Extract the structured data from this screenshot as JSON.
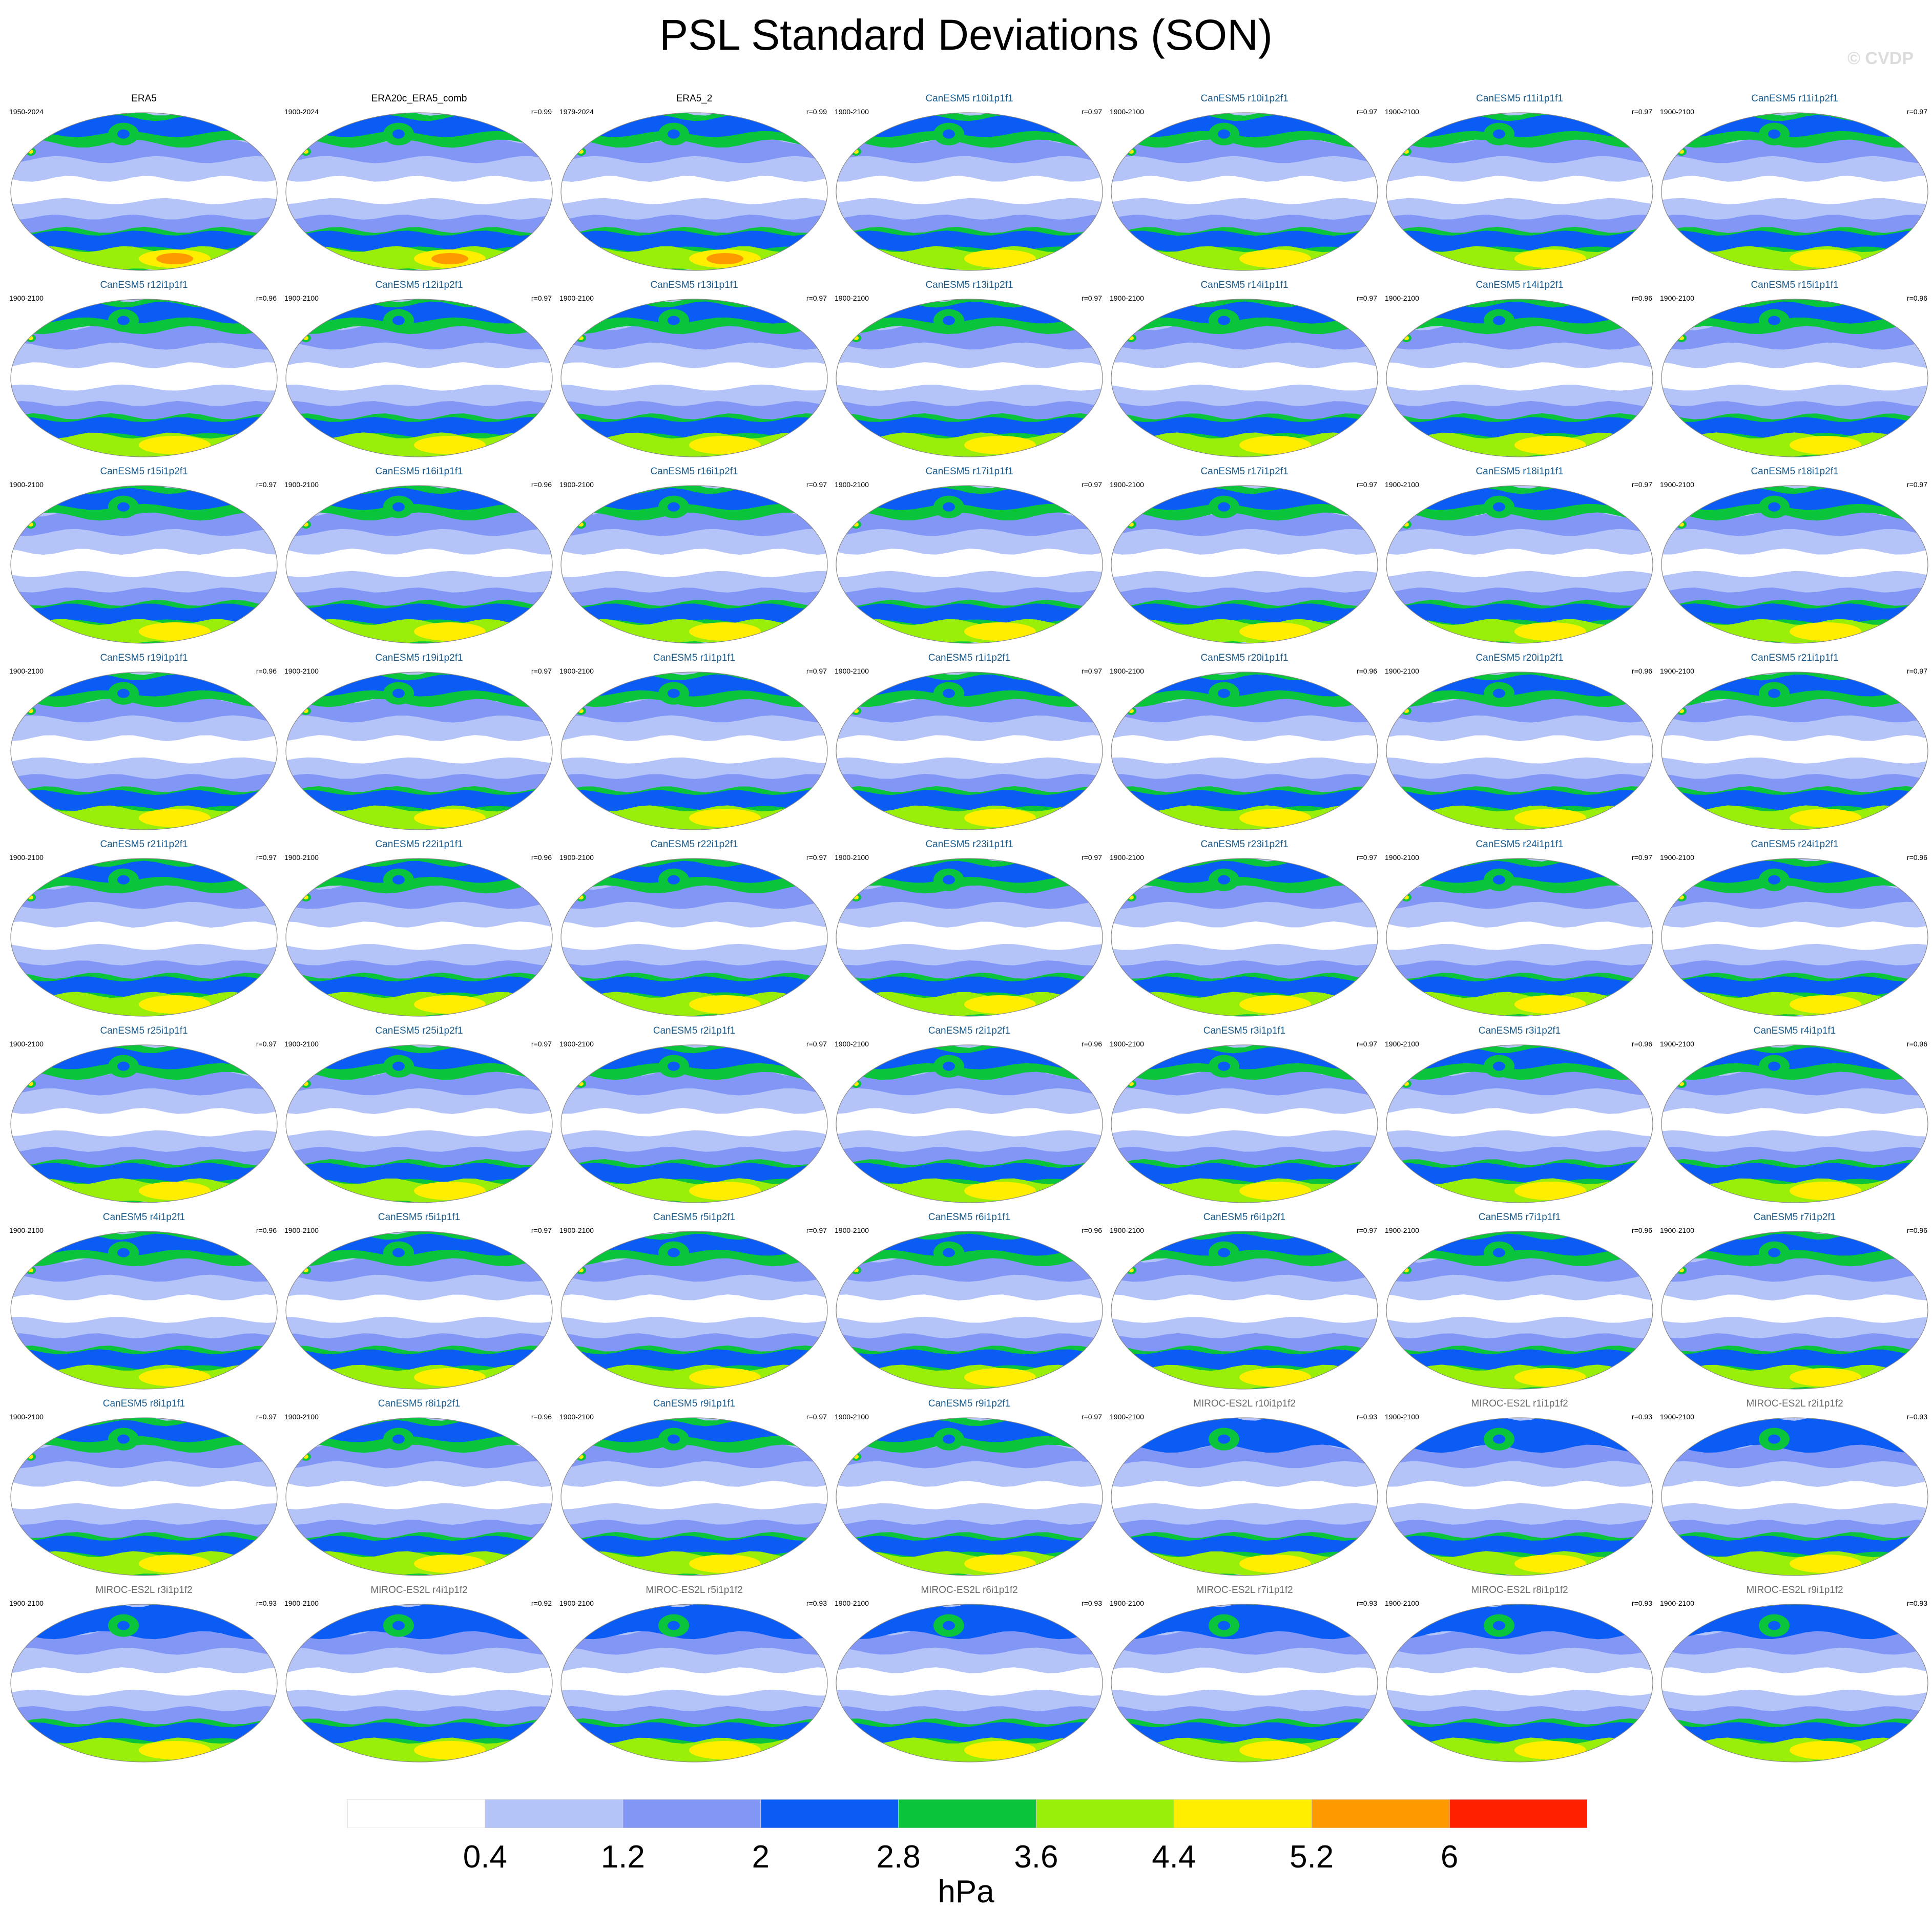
{
  "title": "PSL Standard Deviations (SON)",
  "watermark": "© CVDP",
  "colors": {
    "model_title_canesm": "#1a5b8c",
    "model_title_miroc": "#6a6a6a",
    "obs_title": "#000000"
  },
  "chart_data": {
    "type": "heatmap",
    "projection": "robinson-global-maps",
    "panel_layout": {
      "columns": 7,
      "rows": 9
    },
    "panels": [
      {
        "title": "ERA5",
        "period": "1950-2024",
        "r": "",
        "kind": "obs"
      },
      {
        "title": "ERA20c_ERA5_comb",
        "period": "1900-2024",
        "r": "r=0.99",
        "kind": "obs"
      },
      {
        "title": "ERA5_2",
        "period": "1979-2024",
        "r": "r=0.99",
        "kind": "obs"
      },
      {
        "title": "CanESM5 r10i1p1f1",
        "period": "1900-2100",
        "r": "r=0.97",
        "kind": "canesm"
      },
      {
        "title": "CanESM5 r10i1p2f1",
        "period": "1900-2100",
        "r": "r=0.97",
        "kind": "canesm"
      },
      {
        "title": "CanESM5 r11i1p1f1",
        "period": "1900-2100",
        "r": "r=0.97",
        "kind": "canesm"
      },
      {
        "title": "CanESM5 r11i1p2f1",
        "period": "1900-2100",
        "r": "r=0.97",
        "kind": "canesm"
      },
      {
        "title": "CanESM5 r12i1p1f1",
        "period": "1900-2100",
        "r": "r=0.96",
        "kind": "canesm"
      },
      {
        "title": "CanESM5 r12i1p2f1",
        "period": "1900-2100",
        "r": "r=0.97",
        "kind": "canesm"
      },
      {
        "title": "CanESM5 r13i1p1f1",
        "period": "1900-2100",
        "r": "r=0.97",
        "kind": "canesm"
      },
      {
        "title": "CanESM5 r13i1p2f1",
        "period": "1900-2100",
        "r": "r=0.97",
        "kind": "canesm"
      },
      {
        "title": "CanESM5 r14i1p1f1",
        "period": "1900-2100",
        "r": "r=0.97",
        "kind": "canesm"
      },
      {
        "title": "CanESM5 r14i1p2f1",
        "period": "1900-2100",
        "r": "r=0.96",
        "kind": "canesm"
      },
      {
        "title": "CanESM5 r15i1p1f1",
        "period": "1900-2100",
        "r": "r=0.96",
        "kind": "canesm"
      },
      {
        "title": "CanESM5 r15i1p2f1",
        "period": "1900-2100",
        "r": "r=0.97",
        "kind": "canesm"
      },
      {
        "title": "CanESM5 r16i1p1f1",
        "period": "1900-2100",
        "r": "r=0.96",
        "kind": "canesm"
      },
      {
        "title": "CanESM5 r16i1p2f1",
        "period": "1900-2100",
        "r": "r=0.97",
        "kind": "canesm"
      },
      {
        "title": "CanESM5 r17i1p1f1",
        "period": "1900-2100",
        "r": "r=0.97",
        "kind": "canesm"
      },
      {
        "title": "CanESM5 r17i1p2f1",
        "period": "1900-2100",
        "r": "r=0.97",
        "kind": "canesm"
      },
      {
        "title": "CanESM5 r18i1p1f1",
        "period": "1900-2100",
        "r": "r=0.97",
        "kind": "canesm"
      },
      {
        "title": "CanESM5 r18i1p2f1",
        "period": "1900-2100",
        "r": "r=0.97",
        "kind": "canesm"
      },
      {
        "title": "CanESM5 r19i1p1f1",
        "period": "1900-2100",
        "r": "r=0.96",
        "kind": "canesm"
      },
      {
        "title": "CanESM5 r19i1p2f1",
        "period": "1900-2100",
        "r": "r=0.97",
        "kind": "canesm"
      },
      {
        "title": "CanESM5 r1i1p1f1",
        "period": "1900-2100",
        "r": "r=0.97",
        "kind": "canesm"
      },
      {
        "title": "CanESM5 r1i1p2f1",
        "period": "1900-2100",
        "r": "r=0.97",
        "kind": "canesm"
      },
      {
        "title": "CanESM5 r20i1p1f1",
        "period": "1900-2100",
        "r": "r=0.96",
        "kind": "canesm"
      },
      {
        "title": "CanESM5 r20i1p2f1",
        "period": "1900-2100",
        "r": "r=0.96",
        "kind": "canesm"
      },
      {
        "title": "CanESM5 r21i1p1f1",
        "period": "1900-2100",
        "r": "r=0.97",
        "kind": "canesm"
      },
      {
        "title": "CanESM5 r21i1p2f1",
        "period": "1900-2100",
        "r": "r=0.97",
        "kind": "canesm"
      },
      {
        "title": "CanESM5 r22i1p1f1",
        "period": "1900-2100",
        "r": "r=0.96",
        "kind": "canesm"
      },
      {
        "title": "CanESM5 r22i1p2f1",
        "period": "1900-2100",
        "r": "r=0.97",
        "kind": "canesm"
      },
      {
        "title": "CanESM5 r23i1p1f1",
        "period": "1900-2100",
        "r": "r=0.97",
        "kind": "canesm"
      },
      {
        "title": "CanESM5 r23i1p2f1",
        "period": "1900-2100",
        "r": "r=0.97",
        "kind": "canesm"
      },
      {
        "title": "CanESM5 r24i1p1f1",
        "period": "1900-2100",
        "r": "r=0.97",
        "kind": "canesm"
      },
      {
        "title": "CanESM5 r24i1p2f1",
        "period": "1900-2100",
        "r": "r=0.96",
        "kind": "canesm"
      },
      {
        "title": "CanESM5 r25i1p1f1",
        "period": "1900-2100",
        "r": "r=0.97",
        "kind": "canesm"
      },
      {
        "title": "CanESM5 r25i1p2f1",
        "period": "1900-2100",
        "r": "r=0.97",
        "kind": "canesm"
      },
      {
        "title": "CanESM5 r2i1p1f1",
        "period": "1900-2100",
        "r": "r=0.97",
        "kind": "canesm"
      },
      {
        "title": "CanESM5 r2i1p2f1",
        "period": "1900-2100",
        "r": "r=0.96",
        "kind": "canesm"
      },
      {
        "title": "CanESM5 r3i1p1f1",
        "period": "1900-2100",
        "r": "r=0.97",
        "kind": "canesm"
      },
      {
        "title": "CanESM5 r3i1p2f1",
        "period": "1900-2100",
        "r": "r=0.96",
        "kind": "canesm"
      },
      {
        "title": "CanESM5 r4i1p1f1",
        "period": "1900-2100",
        "r": "r=0.96",
        "kind": "canesm"
      },
      {
        "title": "CanESM5 r4i1p2f1",
        "period": "1900-2100",
        "r": "r=0.96",
        "kind": "canesm"
      },
      {
        "title": "CanESM5 r5i1p1f1",
        "period": "1900-2100",
        "r": "r=0.97",
        "kind": "canesm"
      },
      {
        "title": "CanESM5 r5i1p2f1",
        "period": "1900-2100",
        "r": "r=0.97",
        "kind": "canesm"
      },
      {
        "title": "CanESM5 r6i1p1f1",
        "period": "1900-2100",
        "r": "r=0.96",
        "kind": "canesm"
      },
      {
        "title": "CanESM5 r6i1p2f1",
        "period": "1900-2100",
        "r": "r=0.97",
        "kind": "canesm"
      },
      {
        "title": "CanESM5 r7i1p1f1",
        "period": "1900-2100",
        "r": "r=0.96",
        "kind": "canesm"
      },
      {
        "title": "CanESM5 r7i1p2f1",
        "period": "1900-2100",
        "r": "r=0.96",
        "kind": "canesm"
      },
      {
        "title": "CanESM5 r8i1p1f1",
        "period": "1900-2100",
        "r": "r=0.97",
        "kind": "canesm"
      },
      {
        "title": "CanESM5 r8i1p2f1",
        "period": "1900-2100",
        "r": "r=0.96",
        "kind": "canesm"
      },
      {
        "title": "CanESM5 r9i1p1f1",
        "period": "1900-2100",
        "r": "r=0.97",
        "kind": "canesm"
      },
      {
        "title": "CanESM5 r9i1p2f1",
        "period": "1900-2100",
        "r": "r=0.97",
        "kind": "canesm"
      },
      {
        "title": "MIROC-ES2L r10i1p1f2",
        "period": "1900-2100",
        "r": "r=0.93",
        "kind": "miroc"
      },
      {
        "title": "MIROC-ES2L r1i1p1f2",
        "period": "1900-2100",
        "r": "r=0.93",
        "kind": "miroc"
      },
      {
        "title": "MIROC-ES2L r2i1p1f2",
        "period": "1900-2100",
        "r": "r=0.93",
        "kind": "miroc"
      },
      {
        "title": "MIROC-ES2L r3i1p1f2",
        "period": "1900-2100",
        "r": "r=0.93",
        "kind": "miroc"
      },
      {
        "title": "MIROC-ES2L r4i1p1f2",
        "period": "1900-2100",
        "r": "r=0.92",
        "kind": "miroc"
      },
      {
        "title": "MIROC-ES2L r5i1p1f2",
        "period": "1900-2100",
        "r": "r=0.93",
        "kind": "miroc"
      },
      {
        "title": "MIROC-ES2L r6i1p1f2",
        "period": "1900-2100",
        "r": "r=0.93",
        "kind": "miroc"
      },
      {
        "title": "MIROC-ES2L r7i1p1f2",
        "period": "1900-2100",
        "r": "r=0.93",
        "kind": "miroc"
      },
      {
        "title": "MIROC-ES2L r8i1p1f2",
        "period": "1900-2100",
        "r": "r=0.93",
        "kind": "miroc"
      },
      {
        "title": "MIROC-ES2L r9i1p1f2",
        "period": "1900-2100",
        "r": "r=0.93",
        "kind": "miroc"
      }
    ],
    "colorbar": {
      "levels": [
        "0.4",
        "1.2",
        "2",
        "2.8",
        "3.6",
        "4.4",
        "5.2",
        "6"
      ],
      "colors": [
        "#ffffff",
        "#b4c4f8",
        "#8296f5",
        "#0a5cf5",
        "#0ac43c",
        "#99ee0a",
        "#ffee00",
        "#ff9900",
        "#ff2000"
      ],
      "units": "hPa"
    }
  }
}
